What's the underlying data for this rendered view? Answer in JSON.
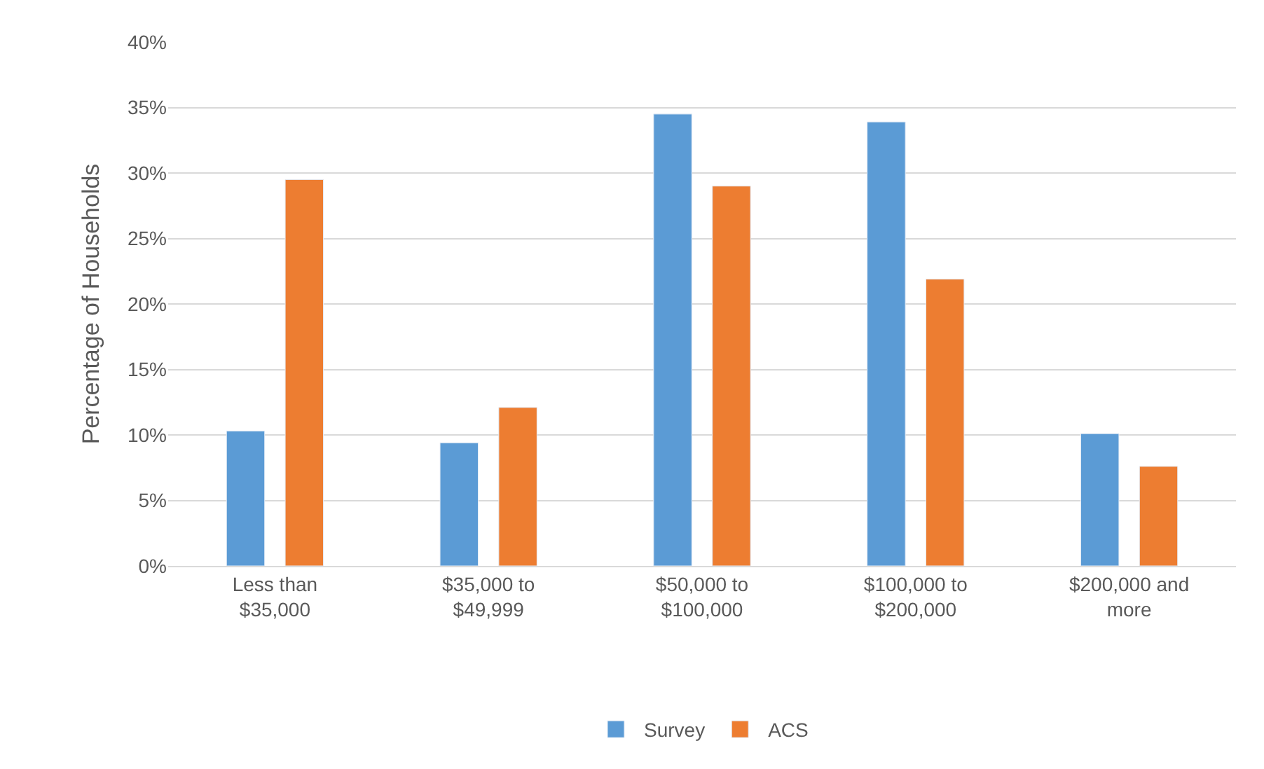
{
  "chart_data": {
    "type": "bar",
    "ylabel": "Percentage of Households",
    "categories": [
      "Less than\n$35,000",
      "$35,000 to\n$49,999",
      "$50,000 to\n$100,000",
      "$100,000 to\n$200,000",
      "$200,000 and\nmore"
    ],
    "series": [
      {
        "name": "Survey",
        "color": "#5b9bd5",
        "values": [
          10.3,
          9.4,
          34.5,
          33.9,
          10.1
        ]
      },
      {
        "name": "ACS",
        "color": "#ed7d31",
        "values": [
          29.5,
          12.1,
          29.0,
          21.9,
          7.6
        ]
      }
    ],
    "ylim": [
      0,
      40
    ],
    "yticks": [
      {
        "value": 0,
        "label": "0%"
      },
      {
        "value": 5,
        "label": "5%"
      },
      {
        "value": 10,
        "label": "10%"
      },
      {
        "value": 15,
        "label": "15%"
      },
      {
        "value": 20,
        "label": "20%"
      },
      {
        "value": 25,
        "label": "25%"
      },
      {
        "value": 30,
        "label": "30%"
      },
      {
        "value": 35,
        "label": "35%"
      },
      {
        "value": 40,
        "label": "40%"
      }
    ],
    "grid": "y",
    "legend": "bottom"
  }
}
